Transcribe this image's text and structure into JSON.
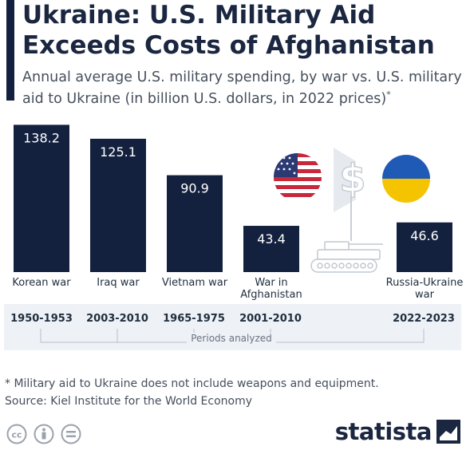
{
  "header": {
    "title": "Ukraine: U.S. Military Aid Exceeds Costs of Afghanistan",
    "subtitle": "Annual average U.S. military spending, by war vs. U.S. military aid to Ukraine (in billion U.S. dollars, in 2022 prices)",
    "subtitle_mark": "*"
  },
  "chart_data": {
    "type": "bar",
    "categories": [
      "Korean war",
      "Iraq war",
      "Vietnam war",
      "War in Afghanistan",
      "Russia-Ukraine war"
    ],
    "values": [
      138.2,
      125.1,
      90.9,
      43.4,
      46.6
    ],
    "value_labels": [
      "138.2",
      "125.1",
      "90.9",
      "43.4",
      "46.6"
    ],
    "periods": [
      "1950-1953",
      "2003-2010",
      "1965-1975",
      "2001-2010",
      "2022-2023"
    ],
    "periods_caption": "Periods analyzed",
    "ylim": [
      0,
      140
    ],
    "bar_color": "#13213f",
    "grid": false
  },
  "illustrations": [
    "us-flag-icon",
    "dollar-sign-icon",
    "ukraine-flag-icon",
    "tank-icon"
  ],
  "footer": {
    "footnote": "* Military aid to Ukraine does not include weapons and equipment.",
    "source": "Source: Kiel Institute for the World Economy",
    "logo": "statista"
  },
  "colors": {
    "accent": "#13213f",
    "us_red": "#c8283a",
    "us_blue": "#2c3a74",
    "ukraine_blue": "#1f5bb6",
    "ukraine_yellow": "#f5c400"
  }
}
